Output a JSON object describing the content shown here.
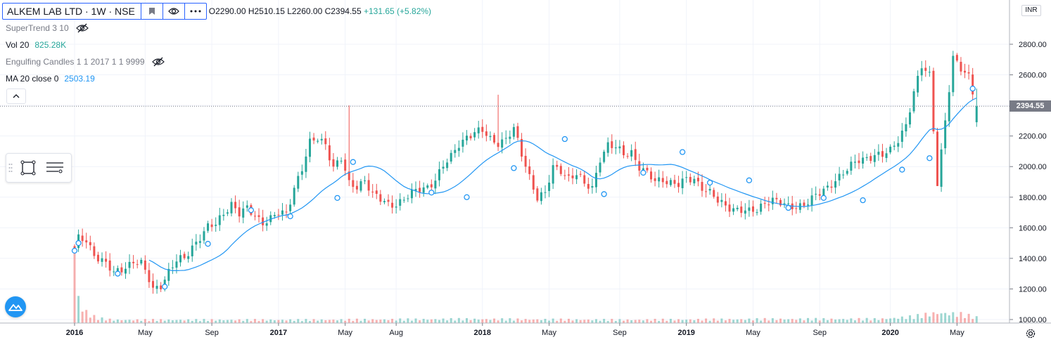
{
  "header": {
    "symbol": "ALKEM LAB LTD · 1W · NSE",
    "ohlc": "O2290.00  H2510.15  L2260.00  C2394.55",
    "change": "+131.65 (+5.82%)"
  },
  "indicators": [
    {
      "label": "SuperTrend 3 10",
      "value": "",
      "hidden": true
    },
    {
      "label": "Vol 20",
      "value": "825.28K",
      "hidden": false,
      "color": "#26a69a"
    },
    {
      "label": "Engulfing Candles 1 1 2017 1 1 9999",
      "value": "",
      "hidden": true
    },
    {
      "label": "MA 20 close 0",
      "value": "2503.19",
      "hidden": false,
      "color": "#2196f3"
    }
  ],
  "currency": "INR",
  "last_price_label": "2394.55",
  "colors": {
    "up": "#26a69a",
    "down": "#ef5350",
    "ma": "#2196f3",
    "grid": "#f0f3fa",
    "axis_text": "#131722"
  },
  "chart_data": {
    "type": "candlestick",
    "timeframe": "1W",
    "ylim": [
      960,
      2990
    ],
    "y_ticks": [
      1000,
      1200,
      1400,
      1600,
      1800,
      2000,
      2200,
      2400,
      2600,
      2800
    ],
    "y_tick_labels": [
      "1000.00",
      "1200.00",
      "1400.00",
      "1600.00",
      "1800.00",
      "2000.00",
      "2200.00",
      "2400.00",
      "2600.00",
      "2800.00"
    ],
    "x_ticks": [
      {
        "week": 0,
        "label": "2016",
        "bold": true
      },
      {
        "week": 18,
        "label": "May",
        "bold": false
      },
      {
        "week": 35,
        "label": "Sep",
        "bold": false
      },
      {
        "week": 52,
        "label": "2017",
        "bold": true
      },
      {
        "week": 69,
        "label": "May",
        "bold": false
      },
      {
        "week": 82,
        "label": "Aug",
        "bold": false
      },
      {
        "week": 104,
        "label": "2018",
        "bold": true
      },
      {
        "week": 121,
        "label": "May",
        "bold": false
      },
      {
        "week": 139,
        "label": "Sep",
        "bold": false
      },
      {
        "week": 156,
        "label": "2019",
        "bold": true
      },
      {
        "week": 173,
        "label": "May",
        "bold": false
      },
      {
        "week": 190,
        "label": "Sep",
        "bold": false
      },
      {
        "week": 208,
        "label": "2020",
        "bold": true
      },
      {
        "week": 225,
        "label": "May",
        "bold": false
      }
    ],
    "last_price": 2394.55,
    "close_anchors": [
      [
        0,
        1450
      ],
      [
        1,
        1525
      ],
      [
        3,
        1520
      ],
      [
        5,
        1430
      ],
      [
        8,
        1360
      ],
      [
        10,
        1300
      ],
      [
        13,
        1350
      ],
      [
        15,
        1380
      ],
      [
        17,
        1360
      ],
      [
        19,
        1260
      ],
      [
        20,
        1200
      ],
      [
        22,
        1230
      ],
      [
        24,
        1310
      ],
      [
        26,
        1380
      ],
      [
        28,
        1400
      ],
      [
        30,
        1480
      ],
      [
        32,
        1540
      ],
      [
        34,
        1600
      ],
      [
        36,
        1620
      ],
      [
        38,
        1700
      ],
      [
        40,
        1760
      ],
      [
        42,
        1690
      ],
      [
        44,
        1720
      ],
      [
        46,
        1680
      ],
      [
        48,
        1640
      ],
      [
        50,
        1660
      ],
      [
        52,
        1690
      ],
      [
        54,
        1690
      ],
      [
        56,
        1870
      ],
      [
        58,
        1990
      ],
      [
        60,
        2150
      ],
      [
        62,
        2180
      ],
      [
        64,
        2150
      ],
      [
        66,
        2000
      ],
      [
        68,
        2050
      ],
      [
        70,
        1880
      ],
      [
        72,
        1870
      ],
      [
        74,
        1920
      ],
      [
        76,
        1820
      ],
      [
        78,
        1780
      ],
      [
        80,
        1750
      ],
      [
        82,
        1760
      ],
      [
        84,
        1790
      ],
      [
        86,
        1820
      ],
      [
        88,
        1850
      ],
      [
        90,
        1870
      ],
      [
        92,
        1920
      ],
      [
        94,
        2000
      ],
      [
        96,
        2060
      ],
      [
        98,
        2150
      ],
      [
        100,
        2200
      ],
      [
        102,
        2220
      ],
      [
        104,
        2230
      ],
      [
        106,
        2180
      ],
      [
        108,
        2160
      ],
      [
        110,
        2180
      ],
      [
        112,
        2240
      ],
      [
        114,
        2080
      ],
      [
        116,
        1940
      ],
      [
        118,
        1800
      ],
      [
        120,
        1820
      ],
      [
        122,
        1990
      ],
      [
        124,
        1980
      ],
      [
        126,
        1930
      ],
      [
        128,
        1950
      ],
      [
        130,
        1880
      ],
      [
        132,
        1860
      ],
      [
        134,
        2060
      ],
      [
        136,
        2140
      ],
      [
        138,
        2120
      ],
      [
        140,
        2080
      ],
      [
        142,
        2100
      ],
      [
        144,
        2000
      ],
      [
        146,
        1950
      ],
      [
        148,
        1900
      ],
      [
        150,
        1920
      ],
      [
        152,
        1900
      ],
      [
        154,
        1880
      ],
      [
        156,
        1910
      ],
      [
        158,
        1920
      ],
      [
        160,
        1870
      ],
      [
        162,
        1830
      ],
      [
        164,
        1770
      ],
      [
        166,
        1740
      ],
      [
        168,
        1730
      ],
      [
        170,
        1720
      ],
      [
        172,
        1700
      ],
      [
        174,
        1710
      ],
      [
        176,
        1770
      ],
      [
        178,
        1790
      ],
      [
        180,
        1760
      ],
      [
        182,
        1730
      ],
      [
        184,
        1740
      ],
      [
        186,
        1760
      ],
      [
        188,
        1790
      ],
      [
        190,
        1820
      ],
      [
        192,
        1860
      ],
      [
        194,
        1920
      ],
      [
        196,
        1960
      ],
      [
        198,
        2000
      ],
      [
        200,
        2040
      ],
      [
        202,
        2060
      ],
      [
        204,
        2080
      ],
      [
        206,
        2070
      ],
      [
        208,
        2100
      ],
      [
        210,
        2180
      ],
      [
        212,
        2280
      ],
      [
        214,
        2480
      ],
      [
        216,
        2650
      ],
      [
        218,
        2600
      ],
      [
        220,
        1900
      ],
      [
        222,
        2300
      ],
      [
        224,
        2700
      ],
      [
        226,
        2640
      ],
      [
        228,
        2600
      ],
      [
        230,
        2394.55
      ]
    ],
    "volume_ratio_anchors": [
      [
        0,
        1.0
      ],
      [
        1,
        0.33
      ],
      [
        2,
        0.18
      ],
      [
        4,
        0.1
      ],
      [
        6,
        0.06
      ],
      [
        10,
        0.04
      ],
      [
        60,
        0.04
      ],
      [
        100,
        0.05
      ],
      [
        140,
        0.04
      ],
      [
        180,
        0.05
      ],
      [
        205,
        0.05
      ],
      [
        214,
        0.08
      ],
      [
        220,
        0.13
      ],
      [
        226,
        0.11
      ],
      [
        230,
        0.07
      ]
    ],
    "markers": [
      {
        "week": 0,
        "price": 1450
      },
      {
        "week": 1,
        "price": 1500
      },
      {
        "week": 11,
        "price": 1300
      },
      {
        "week": 23,
        "price": 1215
      },
      {
        "week": 34,
        "price": 1495
      },
      {
        "week": 45,
        "price": 1715
      },
      {
        "week": 55,
        "price": 1675
      },
      {
        "week": 67,
        "price": 1795
      },
      {
        "week": 71,
        "price": 2030
      },
      {
        "week": 91,
        "price": 1830
      },
      {
        "week": 100,
        "price": 1800
      },
      {
        "week": 112,
        "price": 1990
      },
      {
        "week": 125,
        "price": 2180
      },
      {
        "week": 135,
        "price": 1820
      },
      {
        "week": 145,
        "price": 1960
      },
      {
        "week": 155,
        "price": 2095
      },
      {
        "week": 162,
        "price": 1895
      },
      {
        "week": 172,
        "price": 1910
      },
      {
        "week": 182,
        "price": 1730
      },
      {
        "week": 191,
        "price": 1795
      },
      {
        "week": 201,
        "price": 1780
      },
      {
        "week": 211,
        "price": 1980
      },
      {
        "week": 218,
        "price": 2055
      },
      {
        "week": 229,
        "price": 2510
      }
    ]
  }
}
